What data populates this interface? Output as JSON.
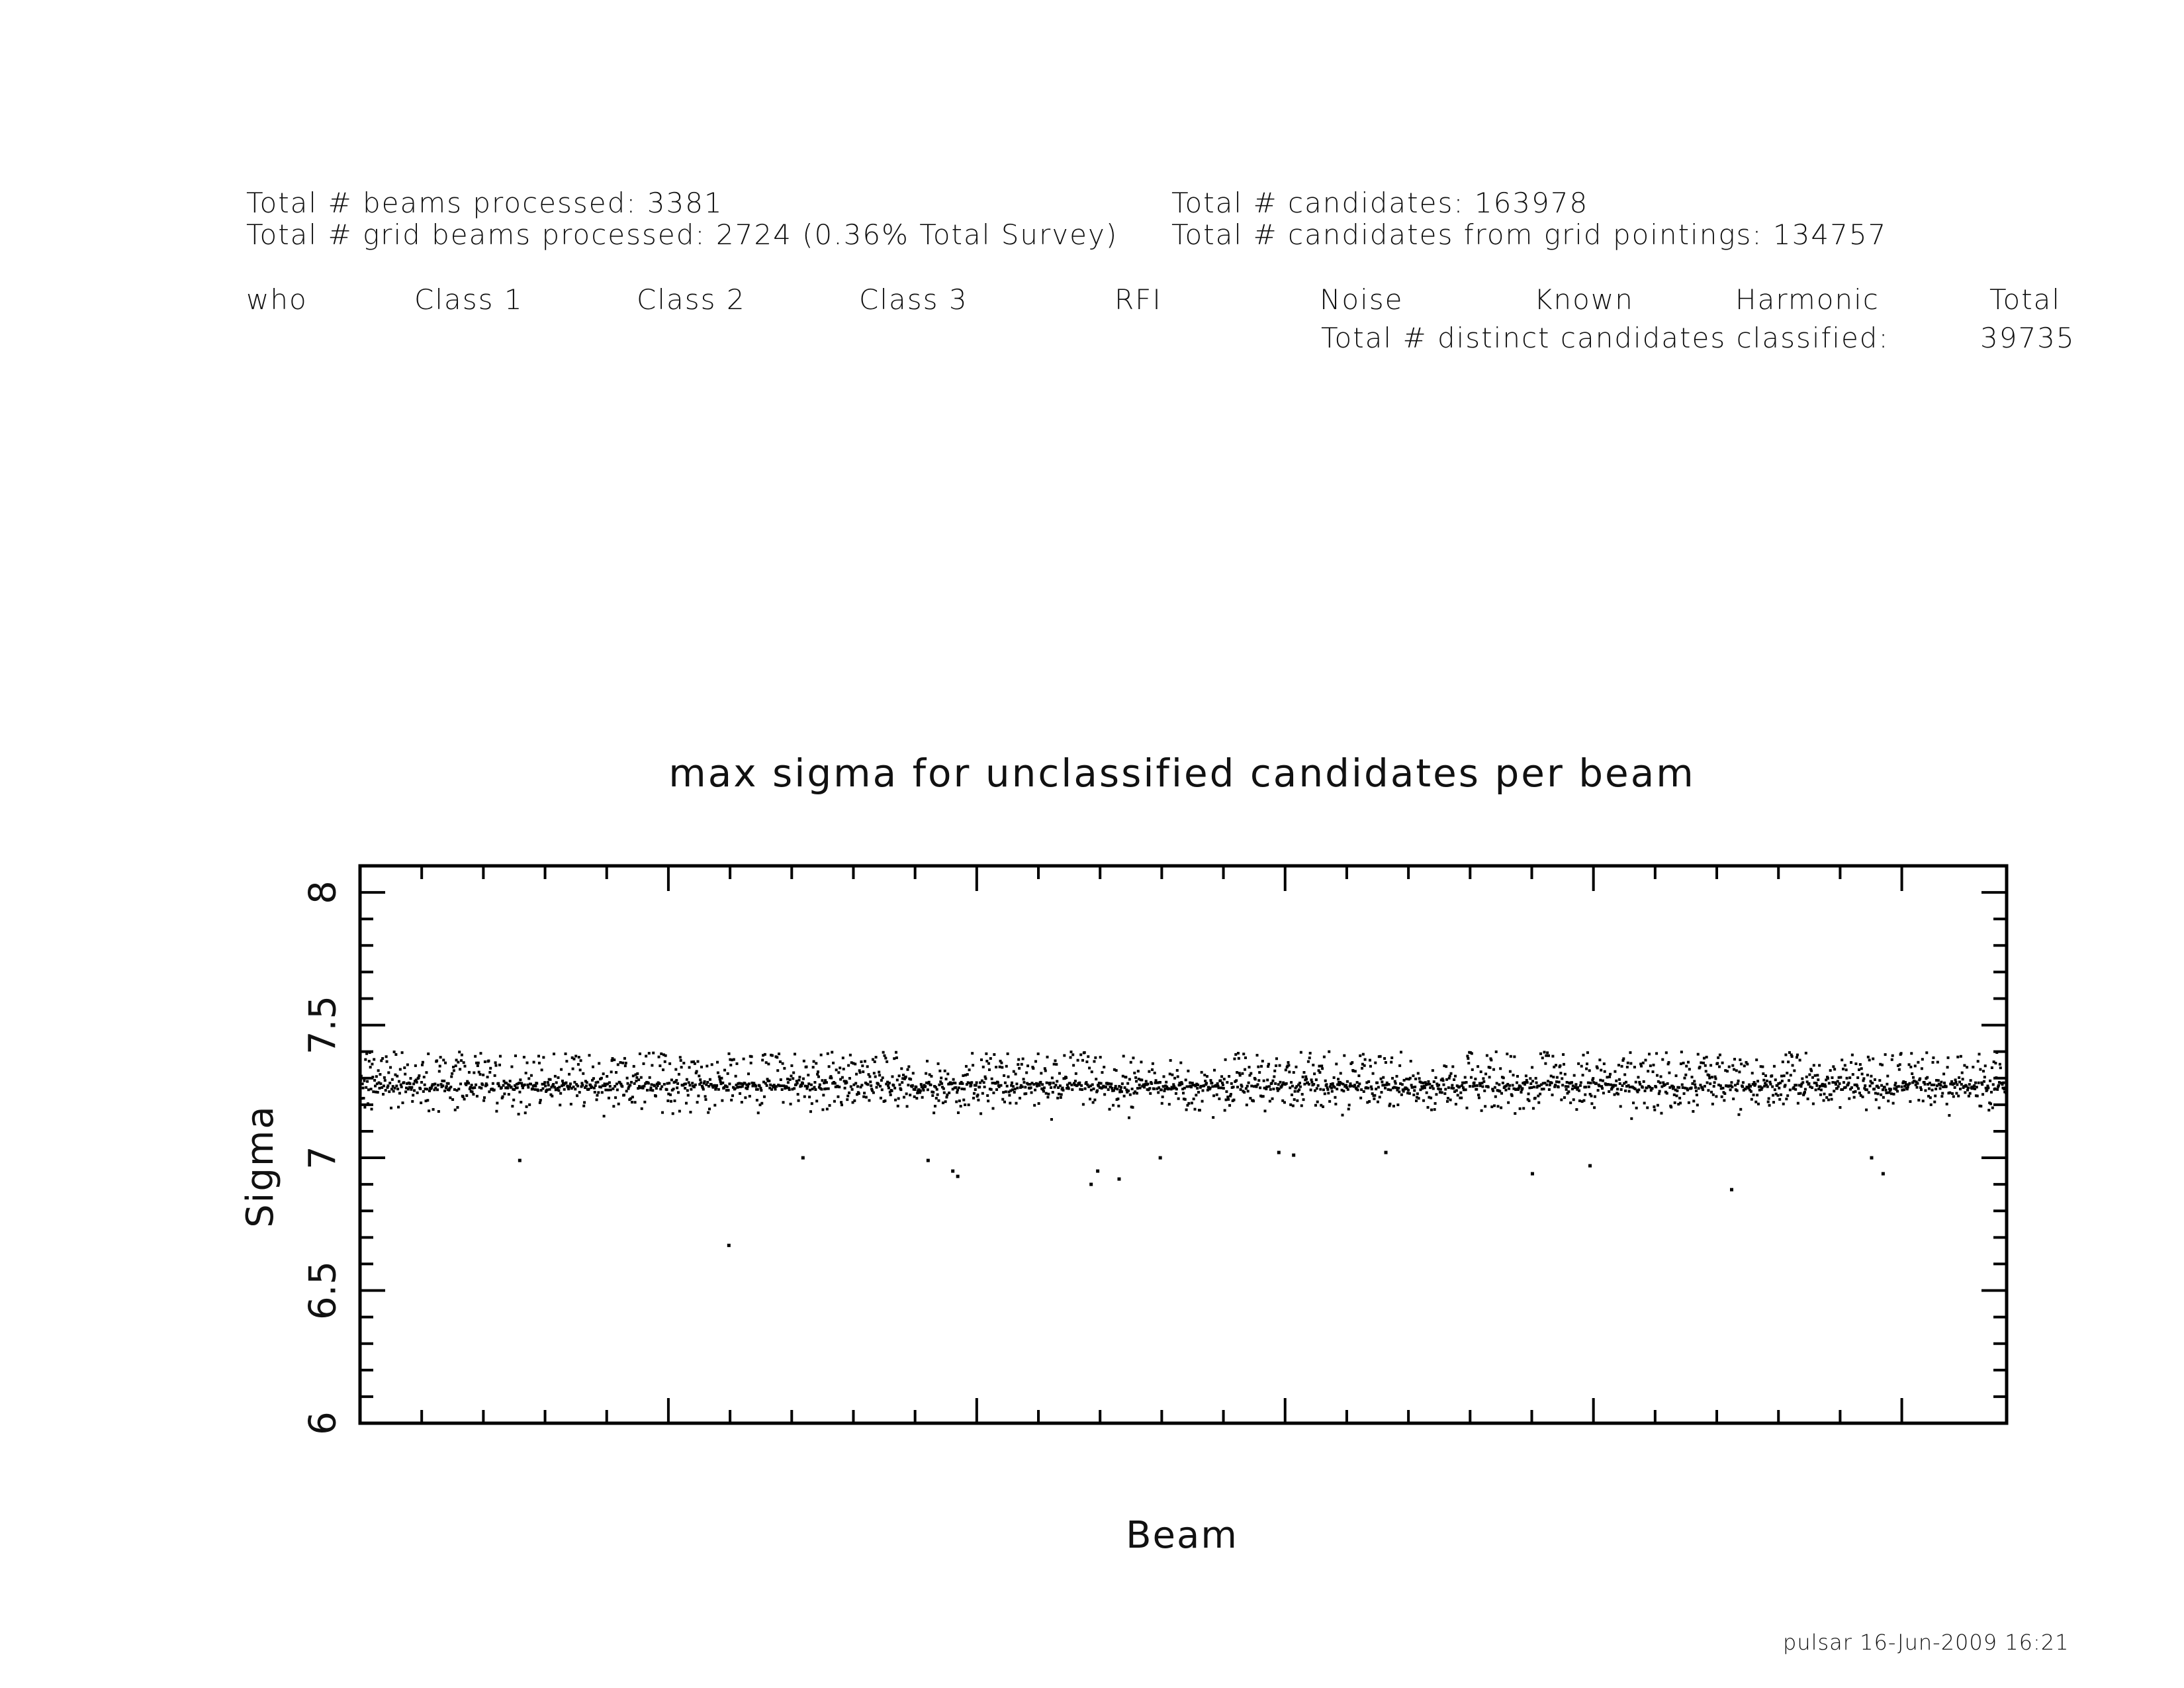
{
  "summary": {
    "beams_processed": "Total # beams processed: 3381",
    "grid_beams_processed": "Total # grid beams processed: 2724 (0.36% Total Survey)",
    "candidates": "Total # candidates: 163978",
    "grid_candidates": "Total # candidates from grid pointings: 134757"
  },
  "table": {
    "columns": [
      "who",
      "Class 1",
      "Class 2",
      "Class 3",
      "RFI",
      "Noise",
      "Known",
      "Harmonic",
      "Total"
    ],
    "distinct_label": "Total # distinct candidates classified:",
    "distinct_value": "39735"
  },
  "footer": "pulsar 16-Jun-2009 16:21",
  "chart_data": {
    "type": "scatter",
    "title": "max sigma for unclassified candidates per beam",
    "xlabel": "Beam",
    "ylabel": "Sigma",
    "ylim": [
      6,
      8.1
    ],
    "yticks": [
      "6",
      "6.5",
      "7",
      "7.5",
      "8"
    ],
    "xlim": [
      0,
      1
    ],
    "x_tick_labels": "none",
    "grid": false,
    "point_color": "#000000",
    "band": {
      "median_sigma": 7.27,
      "upper_sigma": 7.4,
      "typical_lower_sigma": 7.1,
      "approx_point_count": 2700
    },
    "outliers": [
      {
        "x": 0.097,
        "y": 6.99
      },
      {
        "x": 0.224,
        "y": 6.67
      },
      {
        "x": 0.269,
        "y": 7.0
      },
      {
        "x": 0.345,
        "y": 6.99
      },
      {
        "x": 0.36,
        "y": 6.95
      },
      {
        "x": 0.363,
        "y": 6.93
      },
      {
        "x": 0.444,
        "y": 6.9
      },
      {
        "x": 0.448,
        "y": 6.95
      },
      {
        "x": 0.461,
        "y": 6.92
      },
      {
        "x": 0.486,
        "y": 7.0
      },
      {
        "x": 0.558,
        "y": 7.02
      },
      {
        "x": 0.567,
        "y": 7.01
      },
      {
        "x": 0.623,
        "y": 7.02
      },
      {
        "x": 0.712,
        "y": 6.94
      },
      {
        "x": 0.747,
        "y": 6.97
      },
      {
        "x": 0.833,
        "y": 6.88
      },
      {
        "x": 0.918,
        "y": 7.0
      },
      {
        "x": 0.925,
        "y": 6.94
      }
    ]
  }
}
